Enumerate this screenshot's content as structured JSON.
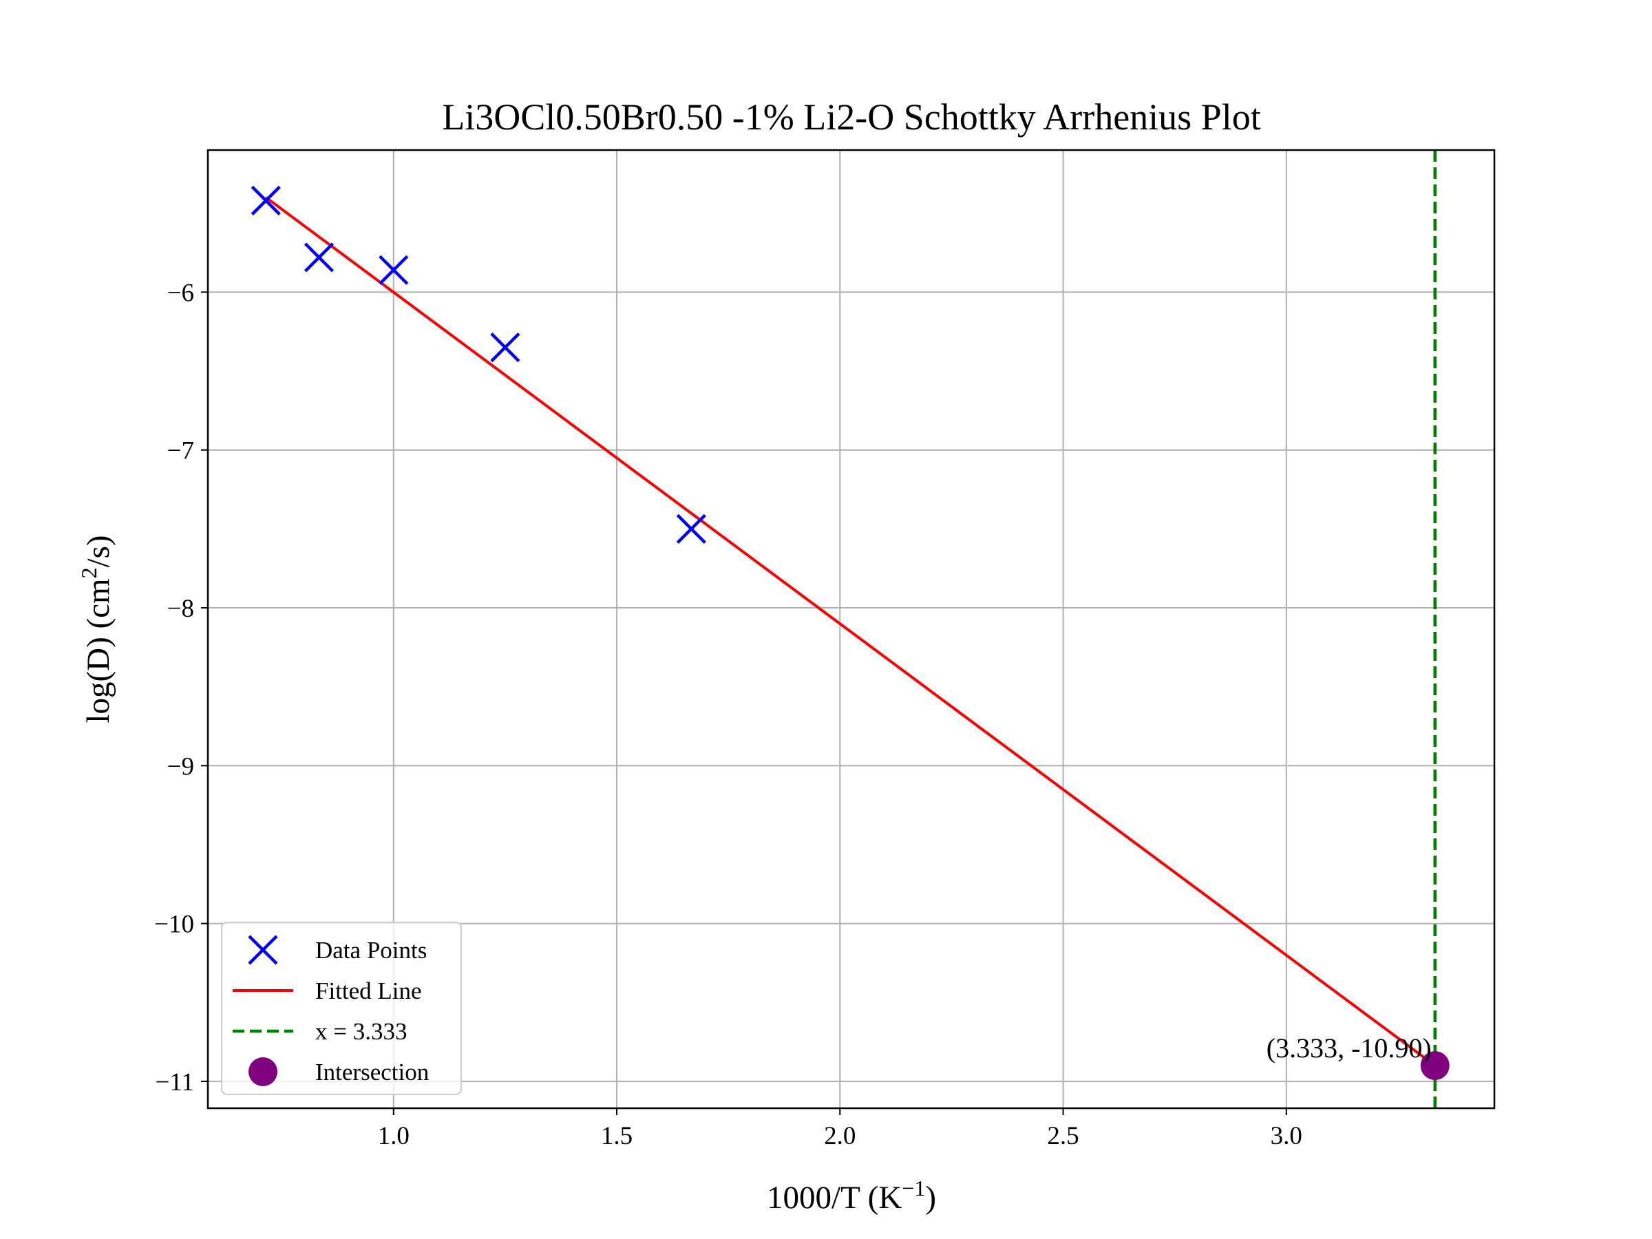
{
  "chart_data": {
    "type": "scatter",
    "title": "Li3OCl0.50Br0.50 -1% Li2-O Schottky Arrhenius Plot",
    "xlabel": {
      "main": "1000/T (K",
      "sup": "−1",
      "end": ")"
    },
    "ylabel": {
      "main": "log(D) (cm",
      "sup": "2",
      "end": "/s)"
    },
    "xlim": [
      0.584,
      3.466
    ],
    "ylim": [
      -11.17,
      -5.1
    ],
    "xticks": [
      1.0,
      1.5,
      2.0,
      2.5,
      3.0
    ],
    "xtick_labels": [
      "1.0",
      "1.5",
      "2.0",
      "2.5",
      "3.0"
    ],
    "yticks": [
      -6,
      -7,
      -8,
      -9,
      -10,
      -11
    ],
    "ytick_labels": [
      "−6",
      "−7",
      "−8",
      "−9",
      "−10",
      "−11"
    ],
    "grid": true,
    "legend_position": "lower-left",
    "series": [
      {
        "name": "Data Points",
        "kind": "scatter",
        "marker": "x",
        "color": "#0000ff",
        "points": [
          {
            "x": 0.714,
            "y": -5.42
          },
          {
            "x": 0.833,
            "y": -5.78
          },
          {
            "x": 1.0,
            "y": -5.86
          },
          {
            "x": 1.25,
            "y": -6.35
          },
          {
            "x": 1.667,
            "y": -7.5
          }
        ]
      },
      {
        "name": "Fitted Line",
        "kind": "line",
        "color": "#ff0000",
        "points": [
          {
            "x": 0.714,
            "y": -5.4
          },
          {
            "x": 3.333,
            "y": -10.9
          }
        ]
      },
      {
        "name": "x = 3.333",
        "kind": "vline",
        "color": "#008000",
        "x": 3.333
      },
      {
        "name": "Intersection",
        "kind": "point",
        "color": "#800080",
        "points": [
          {
            "x": 3.333,
            "y": -10.9
          }
        ]
      }
    ],
    "annotations": [
      {
        "text": "(3.333, -10.90)",
        "x": 3.333,
        "y": -10.9
      }
    ]
  }
}
